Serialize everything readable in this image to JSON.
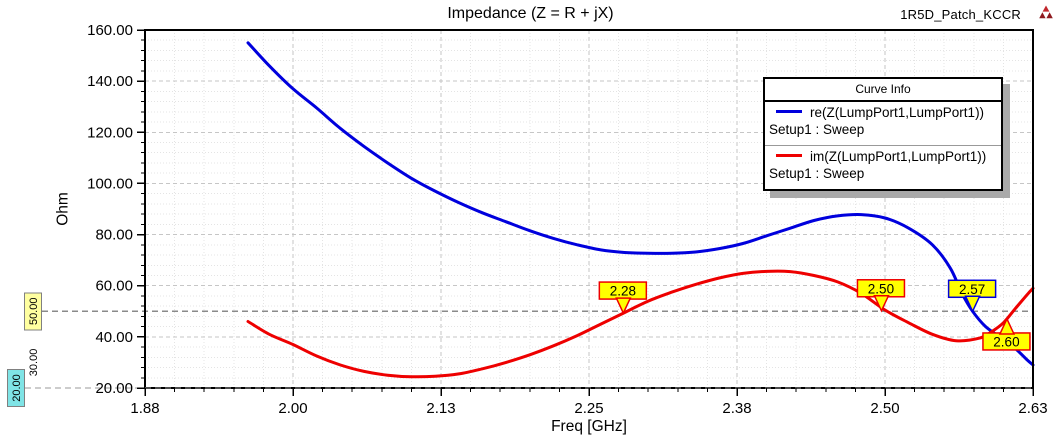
{
  "header": {
    "title": "Impedance (Z = R + jX)",
    "project_label": "1R5D_Patch_KCCR",
    "logo_icon": "ansoft-red-triangle-logo",
    "logo_color": "#b01e23"
  },
  "chart_data": {
    "type": "line",
    "title": "Impedance (Z = R + jX)",
    "xlabel": "Freq [GHz]",
    "ylabel": "Ohm",
    "xlim": [
      1.875,
      2.625
    ],
    "ylim": [
      20,
      160
    ],
    "grid": true,
    "x_axis": {
      "major_step": 0.125,
      "minor_step": 0.025,
      "ticks": [
        {
          "value": 1.875,
          "label": "1.88"
        },
        {
          "value": 2.0,
          "label": "2.00"
        },
        {
          "value": 2.125,
          "label": "2.13"
        },
        {
          "value": 2.25,
          "label": "2.25"
        },
        {
          "value": 2.375,
          "label": "2.38"
        },
        {
          "value": 2.5,
          "label": "2.50"
        },
        {
          "value": 2.625,
          "label": "2.63"
        }
      ]
    },
    "y_axis": {
      "major_step": 20,
      "minor_step": 4,
      "ticks": [
        {
          "value": 20,
          "label": "20.00"
        },
        {
          "value": 40,
          "label": "40.00"
        },
        {
          "value": 60,
          "label": "60.00"
        },
        {
          "value": 80,
          "label": "80.00"
        },
        {
          "value": 100,
          "label": "100.00"
        },
        {
          "value": 120,
          "label": "120.00"
        },
        {
          "value": 140,
          "label": "140.00"
        },
        {
          "value": 160,
          "label": "160.00"
        }
      ]
    },
    "y_axis_markers": [
      {
        "label": "50.00",
        "value": 50,
        "boxed": true,
        "highlight": "#ffffa0",
        "line": true
      },
      {
        "label": "30.00",
        "value": 30,
        "boxed": false,
        "highlight": null,
        "line": false
      },
      {
        "label": "20.00",
        "value": 20,
        "boxed": true,
        "highlight": "#7fe4e6",
        "line": true
      }
    ],
    "legend": {
      "title": "Curve Info",
      "position": "top-right"
    },
    "series": [
      {
        "name": "re(Z(LumpPort1,LumpPort1))",
        "setup": "Setup1 : Sweep",
        "color": "#0000dd",
        "points": [
          [
            1.962,
            155
          ],
          [
            1.98,
            146
          ],
          [
            2.0,
            137
          ],
          [
            2.02,
            129.5
          ],
          [
            2.04,
            121.5
          ],
          [
            2.06,
            114.5
          ],
          [
            2.08,
            108
          ],
          [
            2.1,
            102
          ],
          [
            2.12,
            97
          ],
          [
            2.14,
            92.5
          ],
          [
            2.16,
            88.5
          ],
          [
            2.18,
            85
          ],
          [
            2.2,
            81.5
          ],
          [
            2.22,
            78.5
          ],
          [
            2.24,
            76
          ],
          [
            2.26,
            74
          ],
          [
            2.28,
            73
          ],
          [
            2.3,
            72.7
          ],
          [
            2.32,
            72.7
          ],
          [
            2.34,
            73.2
          ],
          [
            2.36,
            74.5
          ],
          [
            2.38,
            76.5
          ],
          [
            2.4,
            79.5
          ],
          [
            2.42,
            82.5
          ],
          [
            2.44,
            85.5
          ],
          [
            2.46,
            87.3
          ],
          [
            2.48,
            87.8
          ],
          [
            2.5,
            86.5
          ],
          [
            2.52,
            82.5
          ],
          [
            2.54,
            76
          ],
          [
            2.555,
            67
          ],
          [
            2.565,
            57
          ],
          [
            2.574,
            50
          ],
          [
            2.585,
            44
          ],
          [
            2.6,
            39
          ],
          [
            2.61,
            35.5
          ],
          [
            2.62,
            31
          ],
          [
            2.625,
            29
          ]
        ]
      },
      {
        "name": "im(Z(LumpPort1,LumpPort1))",
        "setup": "Setup1 : Sweep",
        "color": "#ee0000",
        "points": [
          [
            1.962,
            46
          ],
          [
            1.98,
            41
          ],
          [
            2.0,
            37
          ],
          [
            2.02,
            32.5
          ],
          [
            2.04,
            29
          ],
          [
            2.06,
            26.5
          ],
          [
            2.08,
            25
          ],
          [
            2.1,
            24.4
          ],
          [
            2.12,
            24.6
          ],
          [
            2.14,
            25.5
          ],
          [
            2.16,
            27.5
          ],
          [
            2.18,
            30
          ],
          [
            2.2,
            33
          ],
          [
            2.22,
            36.5
          ],
          [
            2.24,
            40.5
          ],
          [
            2.26,
            45
          ],
          [
            2.28,
            49.5
          ],
          [
            2.3,
            54
          ],
          [
            2.32,
            57.5
          ],
          [
            2.34,
            60.5
          ],
          [
            2.36,
            63
          ],
          [
            2.38,
            64.8
          ],
          [
            2.4,
            65.6
          ],
          [
            2.42,
            65.5
          ],
          [
            2.44,
            64
          ],
          [
            2.46,
            61.5
          ],
          [
            2.48,
            57
          ],
          [
            2.5,
            50.5
          ],
          [
            2.52,
            45.5
          ],
          [
            2.54,
            41
          ],
          [
            2.56,
            38.5
          ],
          [
            2.58,
            39.5
          ],
          [
            2.59,
            42
          ],
          [
            2.6,
            45.5
          ],
          [
            2.61,
            51
          ],
          [
            2.62,
            56.5
          ],
          [
            2.625,
            59
          ]
        ]
      }
    ],
    "markers": [
      {
        "label": "2.28",
        "freq": 2.279,
        "ohm": 49.3,
        "direction": "down",
        "border_color": "#ee0000",
        "fill_color": "#ffff00"
      },
      {
        "label": "2.50",
        "freq": 2.497,
        "ohm": 50.2,
        "direction": "down",
        "border_color": "#ee0000",
        "fill_color": "#ffff00"
      },
      {
        "label": "2.57",
        "freq": 2.574,
        "ohm": 50.0,
        "direction": "down",
        "border_color": "#0000dd",
        "fill_color": "#ffff00"
      },
      {
        "label": "2.60",
        "freq": 2.603,
        "ohm": 47.0,
        "direction": "up",
        "border_color": "#ee0000",
        "fill_color": "#ffff00"
      }
    ]
  }
}
